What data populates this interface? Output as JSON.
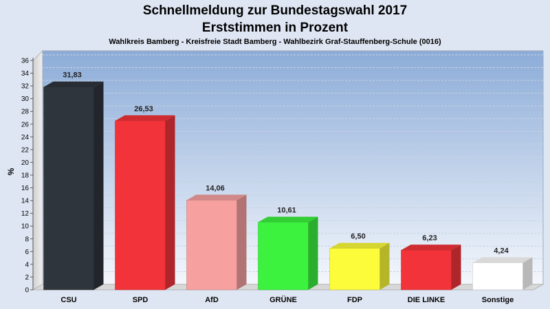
{
  "chart_data": {
    "type": "bar",
    "title": "Schnellmeldung zur Bundestagswahl 2017",
    "title2": "Erststimmen in Prozent",
    "subtitle": "Wahlkreis Bamberg - Kreisfreie Stadt Bamberg - Wahlbezirk Graf-Stauffenberg-Schule (0016)",
    "ylabel": "%",
    "ylim": [
      0,
      36
    ],
    "yticks": [
      "0",
      "2",
      "4",
      "6",
      "8",
      "10",
      "12",
      "14",
      "16",
      "18",
      "20",
      "22",
      "24",
      "26",
      "28",
      "30",
      "32",
      "34",
      "36"
    ],
    "categories": [
      "CSU",
      "SPD",
      "AfD",
      "GRÜNE",
      "FDP",
      "DIE LINKE",
      "Sonstige"
    ],
    "values": [
      31.83,
      26.53,
      14.06,
      10.61,
      6.5,
      6.23,
      4.24
    ],
    "value_labels": [
      "31,83",
      "26,53",
      "14,06",
      "10,61",
      "6,50",
      "6,23",
      "4,24"
    ],
    "colors": [
      "#2f353d",
      "#f2343a",
      "#f6a0a0",
      "#3cf23e",
      "#fcfc3a",
      "#f2343a",
      "#ffffff"
    ],
    "grid": true
  }
}
